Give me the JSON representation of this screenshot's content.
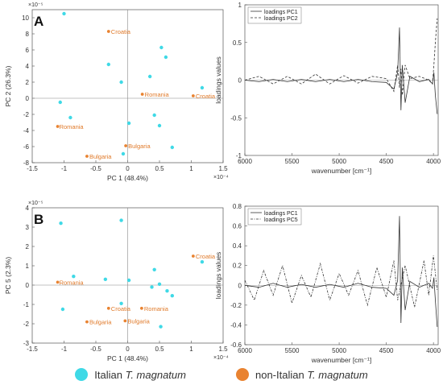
{
  "colors": {
    "italian": "#3fd9e6",
    "non_italian": "#e98331",
    "axis": "#555555",
    "line": "#333333"
  },
  "legend": {
    "italian": {
      "prefix": "Italian ",
      "species": "T. magnatum"
    },
    "non_italian": {
      "prefix": "non-Italian ",
      "species": "T. magnatum"
    }
  },
  "chart_data": [
    {
      "panel": "A",
      "type": "scatter",
      "xlabel": "PC 1 (48.4%)",
      "ylabel": "PC 2 (26.3%)",
      "x_multiplier": "×10⁻⁴",
      "y_multiplier": "×10⁻⁵",
      "xlim": [
        -1.5,
        1.5
      ],
      "ylim": [
        -8,
        11
      ],
      "xticks": [
        -1.5,
        -1,
        -0.5,
        0,
        0.5,
        1,
        1.5
      ],
      "xtick_labels": [
        "-1.5",
        "-1",
        "-0.5",
        "0",
        "0.5",
        "1",
        "1.5"
      ],
      "yticks": [
        -8,
        -6,
        -4,
        -2,
        0,
        2,
        4,
        6,
        8,
        10
      ],
      "ytick_labels": [
        "-8",
        "-6",
        "-4",
        "-2",
        "0",
        "2",
        "4",
        "6",
        "8",
        "10"
      ],
      "series": [
        {
          "name": "Italian T. magnatum",
          "group": "italian",
          "points": [
            {
              "x": -1.0,
              "y": 10.5
            },
            {
              "x": 0.53,
              "y": 6.3
            },
            {
              "x": 0.6,
              "y": 5.1
            },
            {
              "x": -0.3,
              "y": 4.2
            },
            {
              "x": 0.35,
              "y": 2.7
            },
            {
              "x": -0.1,
              "y": 2.0
            },
            {
              "x": 1.17,
              "y": 1.3
            },
            {
              "x": -1.06,
              "y": -0.5
            },
            {
              "x": -0.9,
              "y": -2.4
            },
            {
              "x": 0.42,
              "y": -2.1
            },
            {
              "x": 0.02,
              "y": -3.1
            },
            {
              "x": 0.5,
              "y": -3.4
            },
            {
              "x": 0.7,
              "y": -6.1
            },
            {
              "x": -0.07,
              "y": -6.9
            }
          ]
        },
        {
          "name": "non-Italian T. magnatum",
          "group": "non_italian",
          "points": [
            {
              "x": -0.3,
              "y": 8.3,
              "label": "Croatia"
            },
            {
              "x": 0.23,
              "y": 0.5,
              "label": "Romania"
            },
            {
              "x": 1.03,
              "y": 0.3,
              "label": "Croatia"
            },
            {
              "x": -1.1,
              "y": -3.5,
              "label": "Romania"
            },
            {
              "x": -0.03,
              "y": -5.9,
              "label": "Bulgaria"
            },
            {
              "x": -0.64,
              "y": -7.2,
              "label": "Bulgaria"
            }
          ]
        }
      ]
    },
    {
      "panel": "",
      "type": "line",
      "xlabel": "wavenumber [cm⁻¹]",
      "ylabel": "loadings values",
      "xlim": [
        6000,
        3950
      ],
      "x_reversed": true,
      "ylim": [
        -1,
        1
      ],
      "xticks": [
        6000,
        5500,
        5000,
        4500,
        4000
      ],
      "xtick_labels": [
        "6000",
        "5500",
        "5000",
        "4500",
        "4000"
      ],
      "yticks": [
        -1,
        -0.5,
        0,
        0.5,
        1
      ],
      "ytick_labels": [
        "-1",
        "-0.5",
        "0",
        "0.5",
        "1"
      ],
      "series": [
        {
          "name": "loadings PC1",
          "style": "solid",
          "x": [
            6000,
            5850,
            5700,
            5550,
            5400,
            5250,
            5100,
            4950,
            4800,
            4650,
            4500,
            4420,
            4380,
            4360,
            4345,
            4330,
            4300,
            4250,
            4150,
            4050,
            4010,
            3995,
            3980,
            3960
          ],
          "y": [
            0,
            -0.02,
            0.01,
            -0.02,
            0.01,
            -0.02,
            0.01,
            -0.02,
            0.01,
            -0.02,
            -0.03,
            -0.12,
            0.1,
            0.7,
            -0.4,
            0.2,
            -0.3,
            0.05,
            -0.02,
            0.01,
            -0.05,
            0.1,
            -0.2,
            -0.45
          ]
        },
        {
          "name": "loadings PC2",
          "style": "dashed",
          "x": [
            6000,
            5850,
            5700,
            5550,
            5400,
            5250,
            5100,
            4950,
            4800,
            4650,
            4500,
            4420,
            4380,
            4360,
            4345,
            4330,
            4300,
            4250,
            4150,
            4050,
            4010,
            3995,
            3980,
            3960
          ],
          "y": [
            0,
            0.05,
            -0.05,
            0.05,
            -0.05,
            0.08,
            -0.05,
            0.06,
            -0.04,
            0.05,
            0.02,
            -0.15,
            0.2,
            -0.1,
            0.15,
            -0.2,
            0.2,
            0.02,
            0.05,
            0.0,
            -0.05,
            0.2,
            0.5,
            0.82
          ]
        }
      ]
    },
    {
      "panel": "B",
      "type": "scatter",
      "xlabel": "PC 1 (48.4%)",
      "ylabel": "PC 5 (2.3%)",
      "x_multiplier": "×10⁻⁴",
      "y_multiplier": "×10⁻⁵",
      "xlim": [
        -1.5,
        1.5
      ],
      "ylim": [
        -3,
        4
      ],
      "xticks": [
        -1.5,
        -1,
        -0.5,
        0,
        0.5,
        1,
        1.5
      ],
      "xtick_labels": [
        "-1.5",
        "-1",
        "-0.5",
        "0",
        "0.5",
        "1",
        "1.5"
      ],
      "yticks": [
        -3,
        -2,
        -1,
        0,
        1,
        2,
        3,
        4
      ],
      "ytick_labels": [
        "-3",
        "-2",
        "-1",
        "0",
        "1",
        "2",
        "3",
        "4"
      ],
      "series": [
        {
          "name": "Italian T. magnatum",
          "group": "italian",
          "points": [
            {
              "x": -0.1,
              "y": 3.35
            },
            {
              "x": -1.05,
              "y": 3.2
            },
            {
              "x": 1.17,
              "y": 1.2
            },
            {
              "x": 0.42,
              "y": 0.8
            },
            {
              "x": -0.85,
              "y": 0.45
            },
            {
              "x": -0.35,
              "y": 0.3
            },
            {
              "x": 0.02,
              "y": 0.25
            },
            {
              "x": 0.5,
              "y": 0.05
            },
            {
              "x": 0.38,
              "y": -0.1
            },
            {
              "x": 0.62,
              "y": -0.3
            },
            {
              "x": 0.7,
              "y": -0.55
            },
            {
              "x": -0.1,
              "y": -0.95
            },
            {
              "x": -1.02,
              "y": -1.25
            },
            {
              "x": 0.52,
              "y": -2.15
            }
          ]
        },
        {
          "name": "non-Italian T. magnatum",
          "group": "non_italian",
          "points": [
            {
              "x": 1.03,
              "y": 1.5,
              "label": "Croatia"
            },
            {
              "x": -1.1,
              "y": 0.15,
              "label": "Romania"
            },
            {
              "x": -0.3,
              "y": -1.2,
              "label": "Croatia"
            },
            {
              "x": 0.22,
              "y": -1.2,
              "label": "Romania"
            },
            {
              "x": -0.64,
              "y": -1.9,
              "label": "Bulgaria"
            },
            {
              "x": -0.04,
              "y": -1.85,
              "label": "Bulgaria"
            }
          ]
        }
      ]
    },
    {
      "panel": "",
      "type": "line",
      "xlabel": "wavenumber [cm⁻¹]",
      "ylabel": "loadings values",
      "xlim": [
        6000,
        3950
      ],
      "x_reversed": true,
      "ylim": [
        -0.6,
        0.8
      ],
      "xticks": [
        6000,
        5500,
        5000,
        4500,
        4000
      ],
      "xtick_labels": [
        "6000",
        "5500",
        "5000",
        "4500",
        "4000"
      ],
      "yticks": [
        -0.6,
        -0.4,
        -0.2,
        0,
        0.2,
        0.4,
        0.6,
        0.8
      ],
      "ytick_labels": [
        "-0.6",
        "-0.4",
        "-0.2",
        "0",
        "0.2",
        "0.4",
        "0.6",
        "0.8"
      ],
      "series": [
        {
          "name": "loadings PC1",
          "style": "solid",
          "x": [
            6000,
            5850,
            5700,
            5550,
            5400,
            5250,
            5100,
            4950,
            4800,
            4650,
            4500,
            4420,
            4380,
            4360,
            4345,
            4330,
            4300,
            4250,
            4150,
            4050,
            4010,
            3995,
            3980,
            3960
          ],
          "y": [
            0,
            -0.02,
            0.02,
            -0.02,
            0.01,
            -0.02,
            0.01,
            -0.02,
            0.02,
            -0.02,
            -0.03,
            -0.1,
            0.05,
            0.7,
            -0.38,
            0.18,
            -0.25,
            0.04,
            -0.02,
            0.02,
            -0.03,
            0.08,
            -0.15,
            -0.42
          ]
        },
        {
          "name": "loadings PC5",
          "style": "dashdot",
          "x": [
            6000,
            5900,
            5800,
            5700,
            5600,
            5500,
            5400,
            5300,
            5200,
            5100,
            5000,
            4900,
            4800,
            4700,
            4600,
            4500,
            4420,
            4380,
            4300,
            4200,
            4100,
            4050,
            4000,
            3960
          ],
          "y": [
            0.05,
            -0.15,
            0.15,
            -0.1,
            0.2,
            -0.18,
            0.1,
            -0.12,
            0.22,
            -0.15,
            0.12,
            -0.1,
            0.15,
            -0.2,
            0.18,
            -0.12,
            0.25,
            -0.15,
            0.2,
            -0.22,
            0.25,
            -0.1,
            0.3,
            -0.05
          ]
        }
      ]
    }
  ]
}
